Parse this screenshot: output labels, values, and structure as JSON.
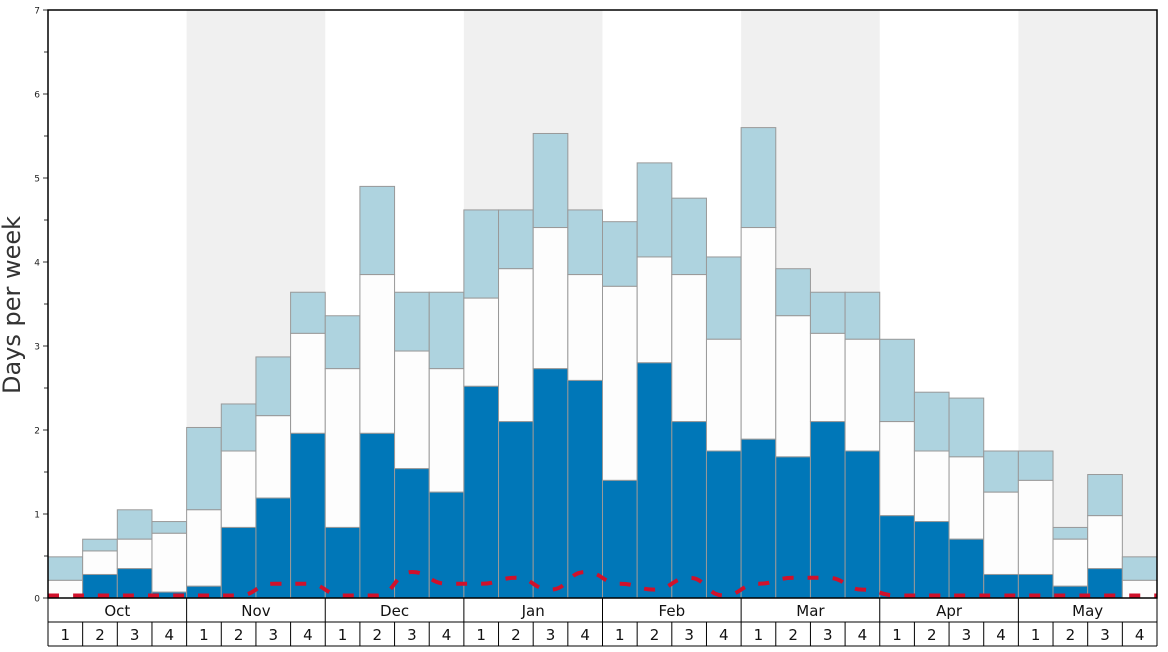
{
  "chart_data": {
    "type": "bar",
    "ylabel": "Days per week",
    "ylim": [
      0,
      7
    ],
    "y_major_ticks": [
      "0",
      "1",
      "2",
      "3",
      "4",
      "5",
      "6",
      "7"
    ],
    "months": [
      "Oct",
      "Nov",
      "Dec",
      "Jan",
      "Feb",
      "Mar",
      "Apr",
      "May"
    ],
    "week_labels": [
      "1",
      "2",
      "3",
      "4"
    ],
    "stacking": "cumulative (bottom-to-top)",
    "line_style": "dashed",
    "colors": {
      "bottom": "#0077b8",
      "middle": "#fdfdfd",
      "top": "#aed3df",
      "line": "#d0112b",
      "shade": "#f0f0f0",
      "bar_edge": "#999999"
    },
    "bottom_values": [
      0,
      0.28,
      0.35,
      0.07,
      0.14,
      0.84,
      1.19,
      1.96,
      0.84,
      1.96,
      1.54,
      1.26,
      2.52,
      2.1,
      2.73,
      2.59,
      1.4,
      2.8,
      2.1,
      1.75,
      1.89,
      1.68,
      2.1,
      1.75,
      0.98,
      0.91,
      0.7,
      0.28,
      0.28,
      0.14,
      0.35,
      0
    ],
    "middle_values": [
      0.21,
      0.56,
      0.7,
      0.77,
      1.05,
      1.75,
      2.17,
      3.15,
      2.73,
      3.85,
      2.94,
      2.73,
      3.57,
      3.92,
      4.41,
      3.85,
      3.71,
      4.06,
      3.85,
      3.08,
      4.41,
      3.36,
      3.15,
      3.08,
      2.1,
      1.75,
      1.68,
      1.26,
      1.4,
      0.7,
      0.98,
      0.21
    ],
    "top_values": [
      0.49,
      0.7,
      1.05,
      0.91,
      2.03,
      2.31,
      2.87,
      3.64,
      3.36,
      4.9,
      3.64,
      3.64,
      4.62,
      4.62,
      5.53,
      4.62,
      4.48,
      5.18,
      4.76,
      4.06,
      5.6,
      3.92,
      3.64,
      3.64,
      3.08,
      2.45,
      2.38,
      1.75,
      1.75,
      0.84,
      1.47,
      0.49
    ],
    "line_values": [
      0.03,
      0.03,
      0.03,
      0.03,
      0.03,
      0.03,
      0.17,
      0.17,
      0.03,
      0.03,
      0.31,
      0.17,
      0.17,
      0.24,
      0.1,
      0.31,
      0.17,
      0.1,
      0.24,
      0.03,
      0.17,
      0.24,
      0.24,
      0.1,
      0.03,
      0.03,
      0.03,
      0.03,
      0.03,
      0.03,
      0.03,
      0.03
    ]
  }
}
